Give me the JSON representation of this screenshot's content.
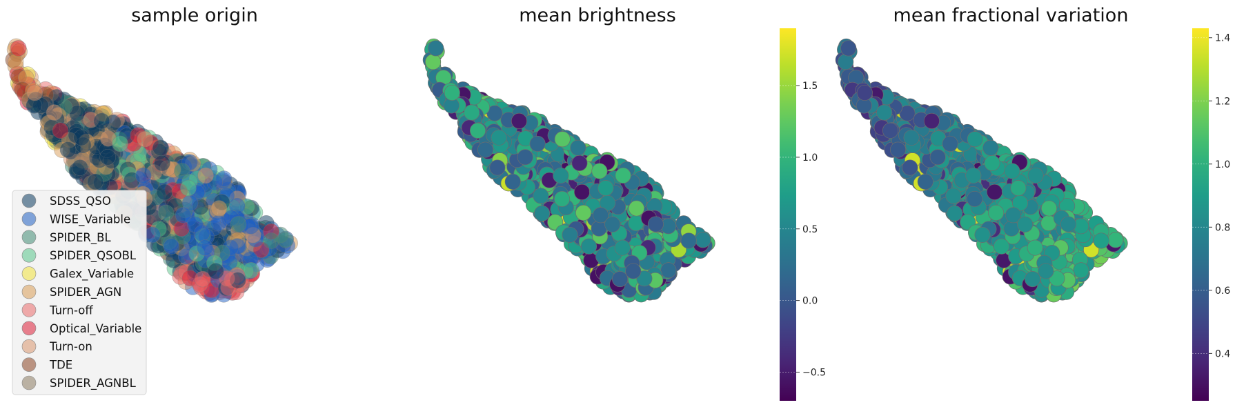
{
  "chart_data": [
    {
      "type": "scatter",
      "title": "sample origin",
      "xlabel": "",
      "ylabel": "",
      "grid": false,
      "legend_position": "lower-left",
      "series": [
        {
          "name": "SDSS_QSO",
          "color": "#0b3a5e"
        },
        {
          "name": "WISE_Variable",
          "color": "#1f5fc1"
        },
        {
          "name": "SPIDER_BL",
          "color": "#3f8a73"
        },
        {
          "name": "SPIDER_QSOBL",
          "color": "#58c58a"
        },
        {
          "name": "Galex_Variable",
          "color": "#f0e13a"
        },
        {
          "name": "SPIDER_AGN",
          "color": "#d99c55"
        },
        {
          "name": "Turn-off",
          "color": "#e96a6a"
        },
        {
          "name": "Optical_Variable",
          "color": "#dc1e36"
        },
        {
          "name": "Turn-on",
          "color": "#d9966e"
        },
        {
          "name": "TDE",
          "color": "#8a4422"
        },
        {
          "name": "SPIDER_AGNBL",
          "color": "#8a7a60"
        }
      ]
    },
    {
      "type": "scatter",
      "title": "mean brightness",
      "xlabel": "",
      "ylabel": "",
      "grid": false,
      "colormap": "viridis",
      "color_range": [
        -0.7,
        1.9
      ],
      "colorbar_ticks": [
        "−0.5",
        "0.0",
        "0.5",
        "1.0",
        "1.5"
      ],
      "colorbar_tick_values": [
        -0.5,
        0.0,
        0.5,
        1.0,
        1.5
      ]
    },
    {
      "type": "scatter",
      "title": "mean fractional variation",
      "xlabel": "",
      "ylabel": "",
      "grid": false,
      "colormap": "viridis",
      "color_range": [
        0.25,
        1.43
      ],
      "colorbar_ticks": [
        "0.4",
        "0.6",
        "0.8",
        "1.0",
        "1.2",
        "1.4"
      ],
      "colorbar_tick_values": [
        0.4,
        0.6,
        0.8,
        1.0,
        1.2,
        1.4
      ]
    }
  ]
}
